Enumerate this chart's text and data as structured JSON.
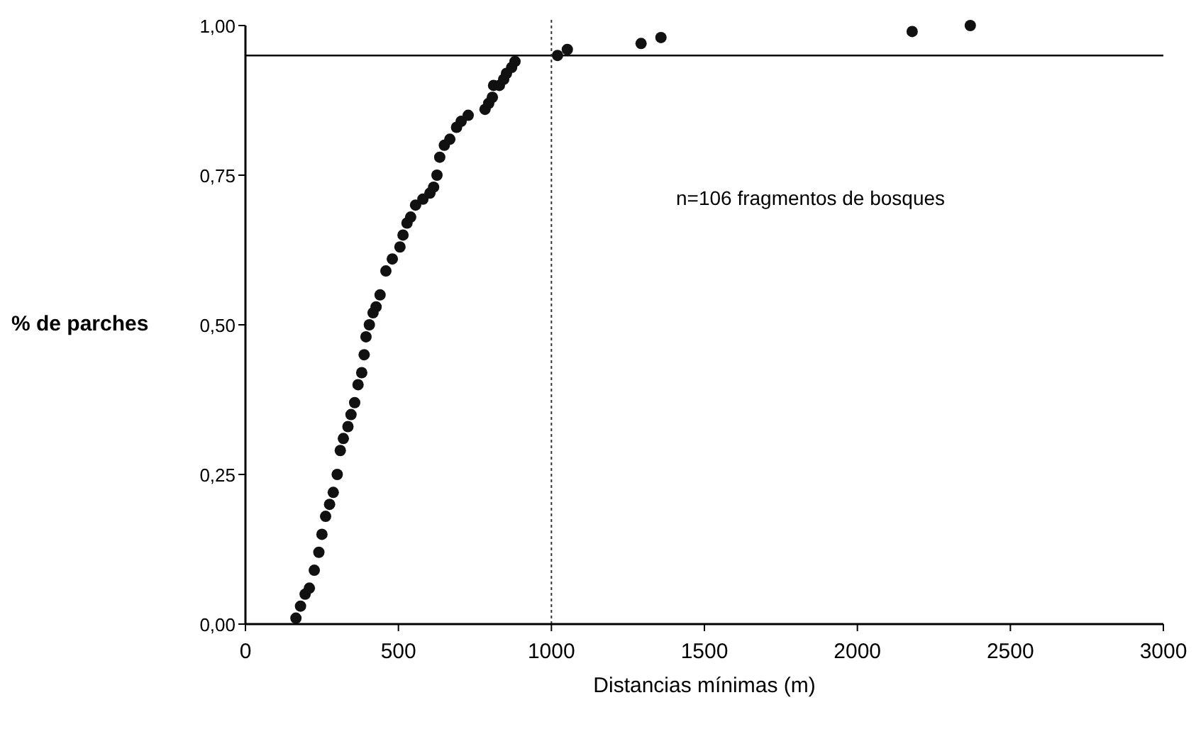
{
  "chart_data": {
    "type": "scatter",
    "xlabel": "Distancias mínimas (m)",
    "ylabel": "% de parches",
    "annotations": [
      "n=106 fragmentos de bosques"
    ],
    "xlim": [
      0,
      3000
    ],
    "xticks": [
      0,
      500,
      1000,
      1500,
      2000,
      2500,
      3000
    ],
    "ylim": [
      0,
      1
    ],
    "yticks": [
      {
        "value": 0,
        "label": "0,00"
      },
      {
        "value": 0.25,
        "label": "0,25"
      },
      {
        "value": 0.5,
        "label": "0,50"
      },
      {
        "value": 0.75,
        "label": "0,75"
      },
      {
        "value": 1,
        "label": "1,00"
      }
    ],
    "marker": "circle",
    "ref_lines": [
      {
        "axis": "y",
        "value": 0.95,
        "color": "#000000",
        "line_style": "solid"
      },
      {
        "axis": "x",
        "value": 1000,
        "color": "#333333",
        "line_style": "dotted"
      }
    ],
    "series": [
      {
        "color": "#111111",
        "x": [
          165,
          180,
          195,
          209,
          225,
          240,
          250,
          262,
          275,
          287,
          300,
          310,
          320,
          335,
          345,
          357,
          368,
          380,
          388,
          394,
          405,
          417,
          427,
          440,
          459,
          480,
          505,
          515,
          528,
          540,
          556,
          580,
          603,
          615,
          626,
          635,
          650,
          668,
          690,
          705,
          728,
          783,
          795,
          807,
          811,
          830,
          844,
          853,
          870,
          881,
          1020,
          1052,
          1293,
          1358,
          2179,
          2369
        ],
        "values": [
          0.01,
          0.03,
          0.05,
          0.06,
          0.09,
          0.12,
          0.15,
          0.18,
          0.2,
          0.22,
          0.25,
          0.29,
          0.31,
          0.33,
          0.35,
          0.37,
          0.4,
          0.42,
          0.45,
          0.48,
          0.5,
          0.52,
          0.53,
          0.55,
          0.59,
          0.61,
          0.63,
          0.65,
          0.67,
          0.68,
          0.7,
          0.71,
          0.72,
          0.73,
          0.75,
          0.78,
          0.8,
          0.81,
          0.83,
          0.84,
          0.85,
          0.86,
          0.87,
          0.88,
          0.9,
          0.9,
          0.91,
          0.92,
          0.93,
          0.94,
          0.95,
          0.96,
          0.97,
          0.98,
          0.99,
          1.0
        ]
      }
    ]
  }
}
